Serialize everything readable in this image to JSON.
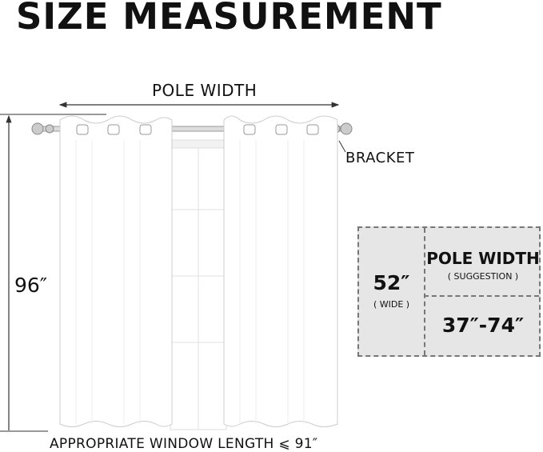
{
  "title": "SIZE MEASUREMENT",
  "diagram": {
    "pole_width_label": "POLE WIDTH",
    "bracket_label": "BRACKET",
    "height_label": "96″",
    "window_length_label": "APPROPRIATE WINDOW LENGTH ⩽ 91″"
  },
  "size_box": {
    "width_value": "52″",
    "width_sub": "( WIDE )",
    "pole_title": "POLE WIDTH",
    "pole_sub": "( SUGGESTION )",
    "pole_value": "37″-74″"
  },
  "colors": {
    "box_bg": "#e6e6e6",
    "dash": "#777777",
    "text": "#111111"
  }
}
